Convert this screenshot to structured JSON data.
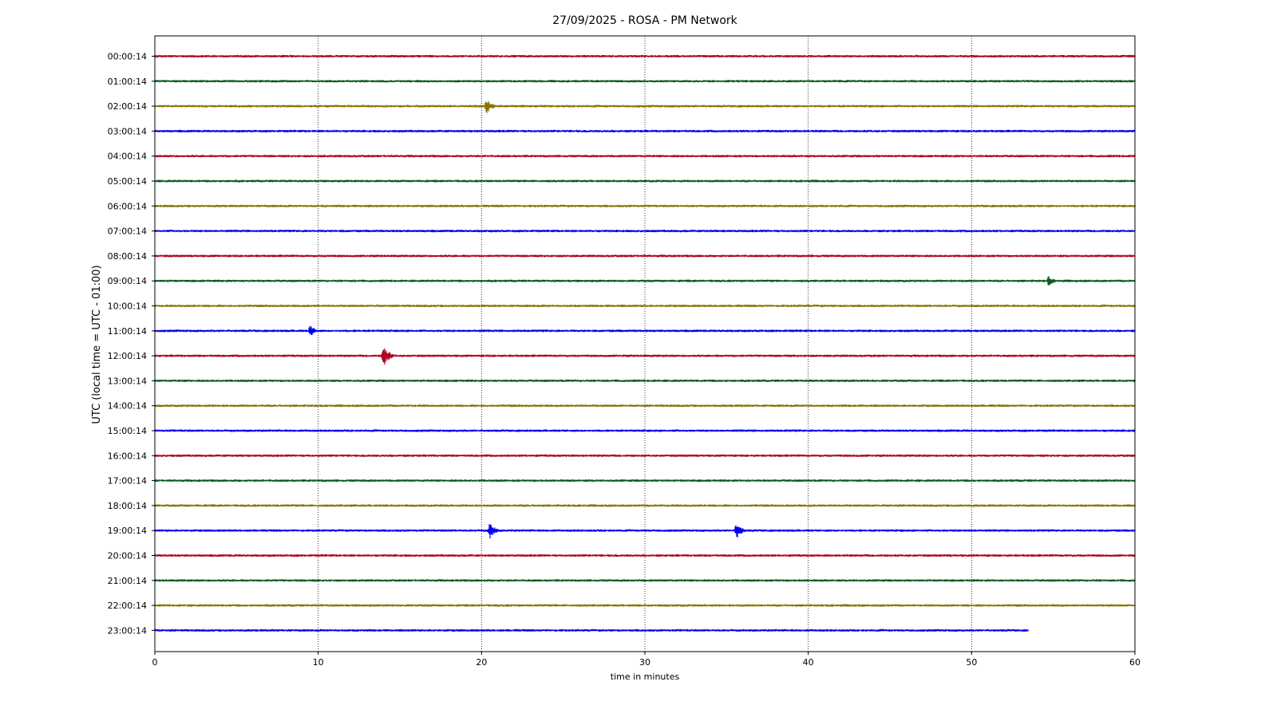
{
  "chart_data": {
    "type": "line",
    "title": "27/09/2025 - ROSA - PM Network",
    "xlabel": "time in minutes",
    "ylabel": "UTC (local time = UTC - 01:00)",
    "xlim": [
      0,
      60
    ],
    "x_ticks": [
      0,
      10,
      20,
      30,
      40,
      50,
      60
    ],
    "grid": "vertical dotted lines at x ticks",
    "colors": [
      "#b00020",
      "#0a5a1e",
      "#857400",
      "#0000f0"
    ],
    "series": [
      {
        "label": "00:00:14",
        "end_minute": 60,
        "events": []
      },
      {
        "label": "01:00:14",
        "end_minute": 60,
        "events": []
      },
      {
        "label": "02:00:14",
        "end_minute": 60,
        "events": [
          {
            "minute": 20.3,
            "amplitude": 10
          }
        ]
      },
      {
        "label": "03:00:14",
        "end_minute": 60,
        "events": []
      },
      {
        "label": "04:00:14",
        "end_minute": 60,
        "events": []
      },
      {
        "label": "05:00:14",
        "end_minute": 60,
        "events": []
      },
      {
        "label": "06:00:14",
        "end_minute": 60,
        "events": []
      },
      {
        "label": "07:00:14",
        "end_minute": 60,
        "events": []
      },
      {
        "label": "08:00:14",
        "end_minute": 60,
        "events": []
      },
      {
        "label": "09:00:14",
        "end_minute": 60,
        "events": [
          {
            "minute": 54.7,
            "amplitude": 7
          }
        ]
      },
      {
        "label": "10:00:14",
        "end_minute": 60,
        "events": []
      },
      {
        "label": "11:00:14",
        "end_minute": 60,
        "events": [
          {
            "minute": 9.5,
            "amplitude": 8
          }
        ]
      },
      {
        "label": "12:00:14",
        "end_minute": 60,
        "events": [
          {
            "minute": 14.0,
            "amplitude": 15
          }
        ]
      },
      {
        "label": "13:00:14",
        "end_minute": 60,
        "events": []
      },
      {
        "label": "14:00:14",
        "end_minute": 60,
        "events": []
      },
      {
        "label": "15:00:14",
        "end_minute": 60,
        "events": []
      },
      {
        "label": "16:00:14",
        "end_minute": 60,
        "events": []
      },
      {
        "label": "17:00:14",
        "end_minute": 60,
        "events": []
      },
      {
        "label": "18:00:14",
        "end_minute": 60,
        "events": []
      },
      {
        "label": "19:00:14",
        "end_minute": 60,
        "events": [
          {
            "minute": 20.5,
            "amplitude": 11
          },
          {
            "minute": 35.6,
            "amplitude": 11
          }
        ]
      },
      {
        "label": "20:00:14",
        "end_minute": 60,
        "events": []
      },
      {
        "label": "21:00:14",
        "end_minute": 60,
        "events": []
      },
      {
        "label": "22:00:14",
        "end_minute": 60,
        "events": []
      },
      {
        "label": "23:00:14",
        "end_minute": 53.5,
        "events": []
      }
    ]
  }
}
